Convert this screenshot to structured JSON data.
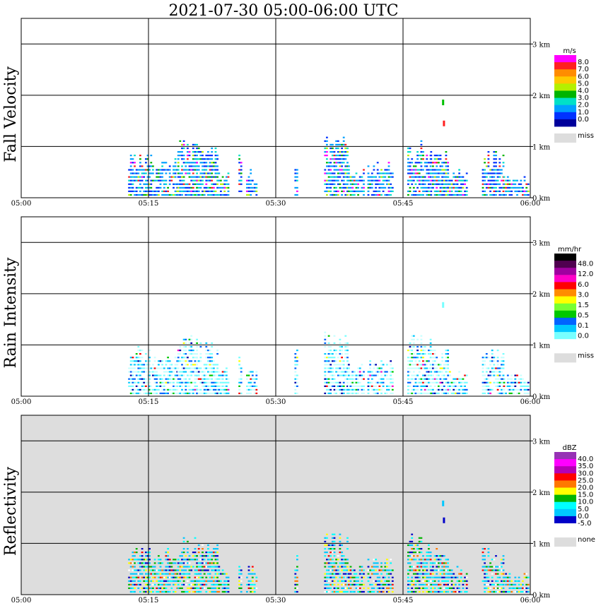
{
  "chart_data": {
    "title": "2021-07-30   05:00-06:00 UTC",
    "x_ticks": [
      "05:00",
      "05:15",
      "05:30",
      "05:45",
      "06:00"
    ],
    "y_ticks": [
      "0 km",
      "1 km",
      "2 km",
      "3 km"
    ],
    "y_range_km": [
      0,
      3.5
    ],
    "panels": [
      {
        "type": "heatmap",
        "ylabel": "Fall Velocity",
        "background": "white",
        "colorbar": {
          "unit": "m/s",
          "labels": [
            "8.0",
            "7.0",
            "6.0",
            "5.0",
            "4.0",
            "3.0",
            "2.0",
            "1.0",
            "0.0"
          ],
          "colors": [
            "#ff00ff",
            "#ff2020",
            "#ff8c00",
            "#ffc800",
            "#b4f000",
            "#00b400",
            "#00e0c8",
            "#00a0ff",
            "#0032ff",
            "#00009b"
          ],
          "miss_label": "miss",
          "miss_color": "#dddddd"
        },
        "palette": [
          "#0032ff",
          "#00a0ff",
          "#00e0c8",
          "#00b400",
          "#b4f000",
          "#ff2020",
          "#ff00ff"
        ],
        "weights": [
          0.3,
          0.36,
          0.14,
          0.08,
          0.05,
          0.03,
          0.04
        ],
        "extras": [
          {
            "time_min": 49.6,
            "km": 1.86,
            "color": "#00c000"
          },
          {
            "time_min": 49.7,
            "km": 1.45,
            "color": "#ff2020"
          }
        ]
      },
      {
        "type": "heatmap",
        "ylabel": "Rain Intensity",
        "background": "white",
        "colorbar": {
          "unit": "mm/hr",
          "labels": [
            "48.0",
            "12.0",
            "6.0",
            "3.0",
            "1.5",
            "0.5",
            "0.1",
            "0.0"
          ],
          "colors": [
            "#000000",
            "#500050",
            "#a000a0",
            "#ff00c8",
            "#ff0000",
            "#ff8c00",
            "#ffff00",
            "#78ff32",
            "#00c800",
            "#0064ff",
            "#00c8ff",
            "#78ffff",
            "#ffffff"
          ],
          "miss_label": "miss",
          "miss_color": "#dddddd"
        },
        "palette": [
          "#c8ffff",
          "#78ffff",
          "#00c8ff",
          "#0064ff",
          "#0000aa",
          "#00c800",
          "#ffff00",
          "#ff0000",
          "#ff00c8"
        ],
        "weights": [
          0.34,
          0.26,
          0.16,
          0.1,
          0.05,
          0.04,
          0.02,
          0.02,
          0.01
        ],
        "extras": [
          {
            "time_min": 49.6,
            "km": 1.78,
            "color": "#78ffff"
          }
        ]
      },
      {
        "type": "heatmap",
        "ylabel": "Reflectivity",
        "background": "#dddddd",
        "colorbar": {
          "unit": "dBZ",
          "labels": [
            "40.0",
            "35.0",
            "30.0",
            "25.0",
            "20.0",
            "15.0",
            "10.0",
            "5.0",
            "0.0",
            "-5.0"
          ],
          "colors": [
            "#9632b4",
            "#ff00ff",
            "#b400b4",
            "#ff0000",
            "#ff7800",
            "#ffff00",
            "#00b400",
            "#00ffff",
            "#00c8ff",
            "#0000c8",
            "#ffffff"
          ],
          "miss_label": "none",
          "miss_color": "#dddddd"
        },
        "palette": [
          "#0000c8",
          "#00c8ff",
          "#00ffff",
          "#00b400",
          "#ffff00",
          "#ff7800",
          "#ff0000",
          "#ffffff"
        ],
        "weights": [
          0.14,
          0.26,
          0.22,
          0.14,
          0.09,
          0.06,
          0.04,
          0.05
        ],
        "extras": [
          {
            "time_min": 49.6,
            "km": 1.78,
            "color": "#00c8ff"
          },
          {
            "time_min": 49.7,
            "km": 1.45,
            "color": "#0000c8"
          }
        ]
      }
    ],
    "echo_cells": [
      {
        "t0": 12.6,
        "t1": 15.2,
        "top_km": 0.95
      },
      {
        "t0": 15.2,
        "t1": 18.4,
        "top_km": 0.85
      },
      {
        "t0": 18.4,
        "t1": 20.6,
        "top_km": 1.18
      },
      {
        "t0": 20.6,
        "t1": 23.2,
        "top_km": 1.05
      },
      {
        "t0": 23.2,
        "t1": 24.4,
        "top_km": 0.55
      },
      {
        "t0": 25.6,
        "t1": 26.0,
        "top_km": 0.85
      },
      {
        "t0": 26.5,
        "t1": 27.2,
        "top_km": 0.55
      },
      {
        "t0": 27.4,
        "t1": 27.8,
        "top_km": 0.45
      },
      {
        "t0": 32.2,
        "t1": 32.5,
        "top_km": 0.85
      },
      {
        "t0": 35.7,
        "t1": 38.5,
        "top_km": 1.2
      },
      {
        "t0": 38.5,
        "t1": 40.3,
        "top_km": 0.6
      },
      {
        "t0": 40.8,
        "t1": 43.8,
        "top_km": 0.7
      },
      {
        "t0": 45.5,
        "t1": 48.2,
        "top_km": 1.18
      },
      {
        "t0": 48.2,
        "t1": 50.2,
        "top_km": 0.9
      },
      {
        "t0": 50.2,
        "t1": 52.6,
        "top_km": 0.5
      },
      {
        "t0": 54.3,
        "t1": 56.8,
        "top_km": 0.9
      },
      {
        "t0": 56.8,
        "t1": 59.8,
        "top_km": 0.4
      }
    ]
  }
}
